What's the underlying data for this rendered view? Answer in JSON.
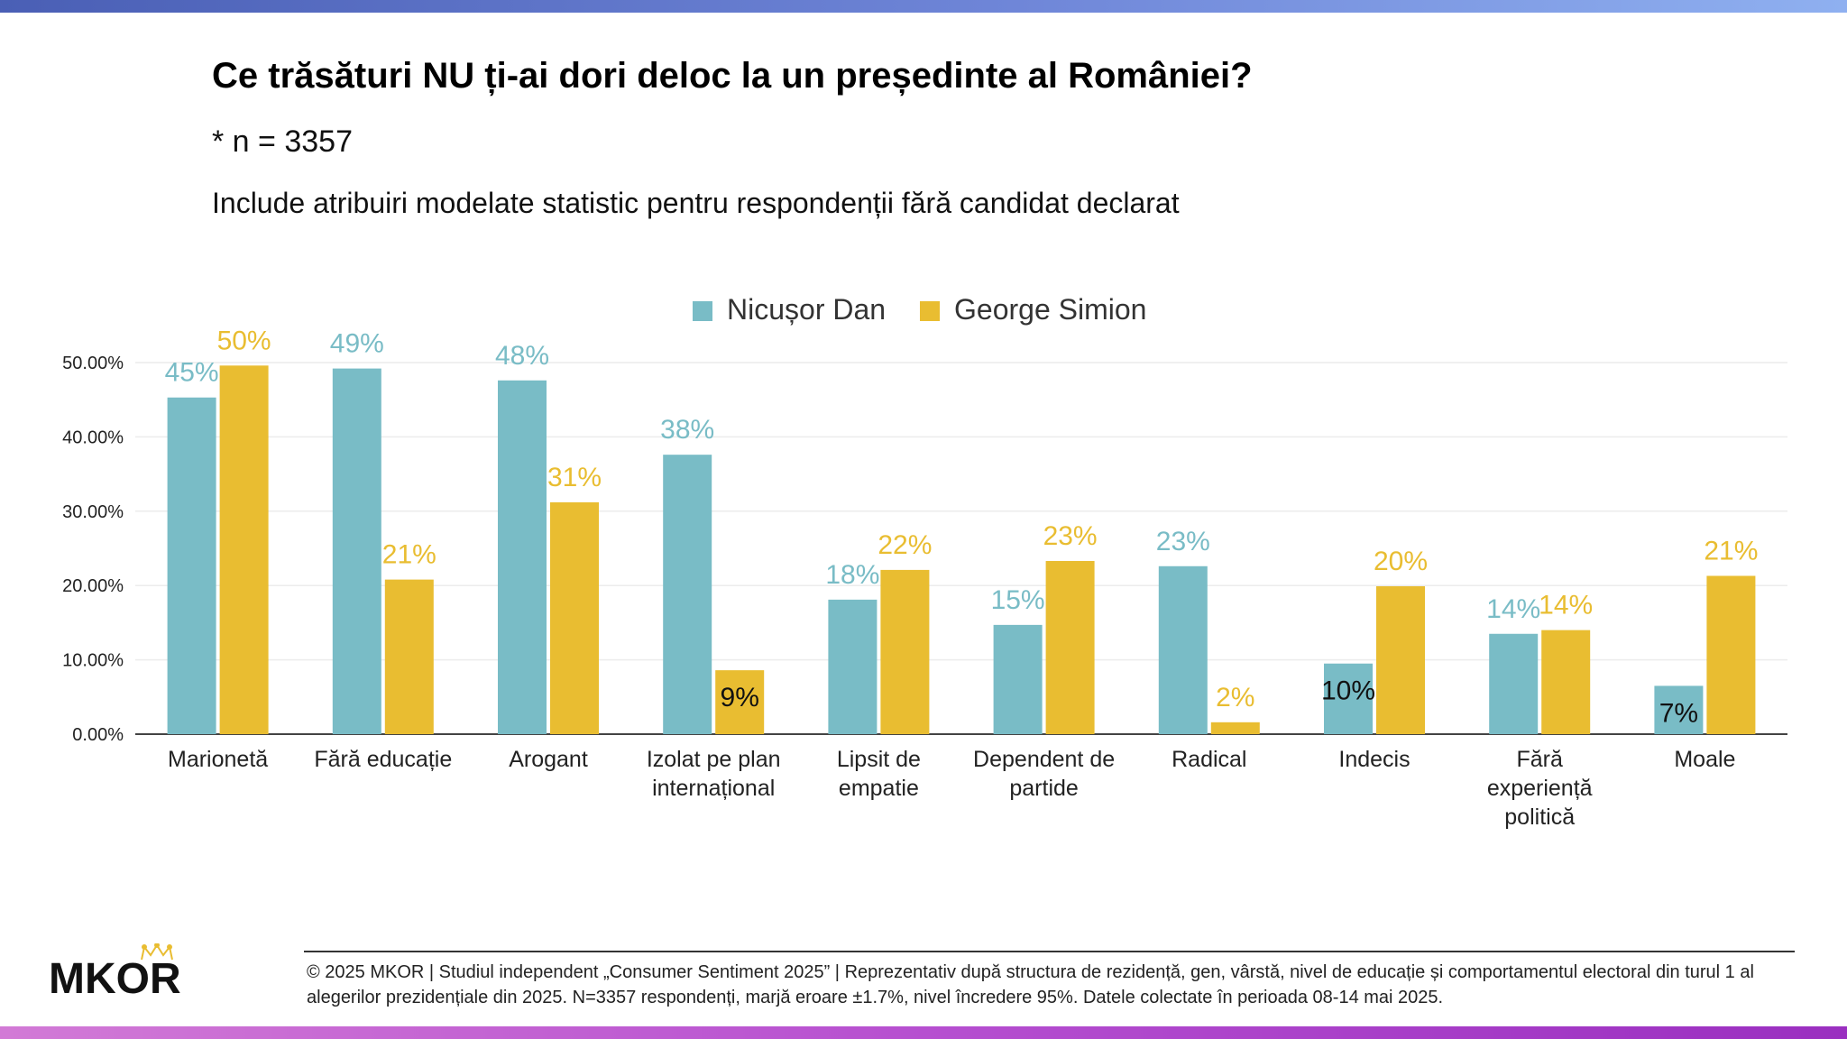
{
  "header": {
    "title": "Ce trăsături NU ți-ai dori deloc la un președinte al României?",
    "sample": "* n = 3357",
    "note": "Include atribuiri modelate statistic pentru respondenții fără candidat declarat"
  },
  "chart_data": {
    "type": "bar",
    "title": "Ce trăsături NU ți-ai dori deloc la un președinte al României?",
    "categories": [
      "Marionetă",
      "Fără educație",
      "Arogant",
      "Izolat pe plan internațional",
      "Lipsit de empatie",
      "Dependent de partide",
      "Radical",
      "Indecis",
      "Fără experiență politică",
      "Moale"
    ],
    "category_lines": [
      [
        "Marionetă"
      ],
      [
        "Fără educație"
      ],
      [
        "Arogant"
      ],
      [
        "Izolat pe plan",
        "internațional"
      ],
      [
        "Lipsit de",
        "empatie"
      ],
      [
        "Dependent de",
        "partide"
      ],
      [
        "Radical"
      ],
      [
        "Indecis"
      ],
      [
        "Fără",
        "experiență",
        "politică"
      ],
      [
        "Moale"
      ]
    ],
    "series": [
      {
        "name": "Nicușor Dan",
        "color": "#79bcc6",
        "values": [
          45.3,
          49.2,
          47.6,
          37.6,
          18.1,
          14.7,
          22.6,
          9.5,
          13.5,
          6.5
        ],
        "labels": [
          "45%",
          "49%",
          "48%",
          "38%",
          "18%",
          "15%",
          "23%",
          "10%",
          "14%",
          "7%"
        ]
      },
      {
        "name": "George Simion",
        "color": "#e9bd31",
        "values": [
          49.6,
          20.8,
          31.2,
          8.6,
          22.1,
          23.3,
          1.6,
          19.9,
          14.0,
          21.3
        ],
        "labels": [
          "50%",
          "21%",
          "31%",
          "9%",
          "22%",
          "23%",
          "2%",
          "20%",
          "14%",
          "21%"
        ]
      }
    ],
    "yticks": [
      "0.00%",
      "10.00%",
      "20.00%",
      "30.00%",
      "40.00%",
      "50.00%"
    ],
    "ylim": [
      0,
      50
    ],
    "xlabel": "",
    "ylabel": "",
    "legend": "top-center",
    "grid": true
  },
  "footer": {
    "copyright": "© 2025 MKOR | Studiul independent „Consumer Sentiment 2025” | Reprezentativ după structura de rezidență, gen, vârstă, nivel de educație și comportamentul electoral din turul 1 al alegerilor prezidențiale din 2025. N=3357 respondenți, marjă eroare ±1.7%, nivel încredere 95%. Datele colectate în perioada 08-14 mai 2025.",
    "logo": "MKOR"
  }
}
